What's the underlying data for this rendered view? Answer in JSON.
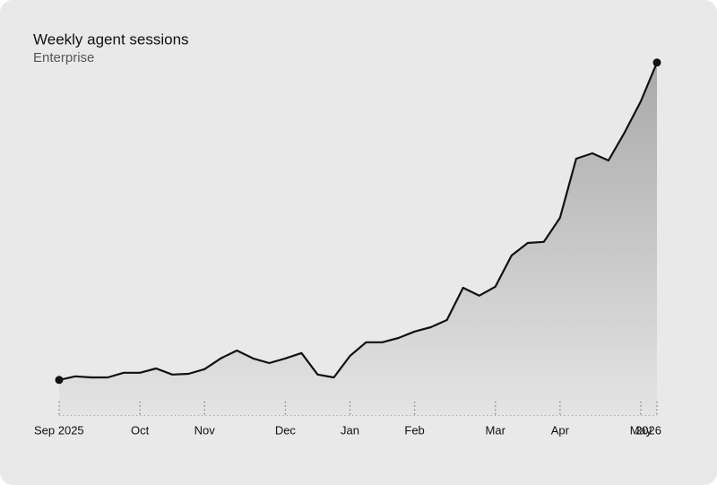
{
  "chart_data": {
    "type": "area",
    "title": "Weekly agent sessions",
    "subtitle": "Enterprise",
    "categories": [
      "Sep 2025",
      null,
      null,
      null,
      null,
      "Oct",
      null,
      null,
      null,
      "Nov",
      null,
      null,
      null,
      null,
      "Dec",
      null,
      null,
      null,
      "Jan",
      null,
      null,
      null,
      "Feb",
      null,
      null,
      null,
      null,
      "Mar",
      null,
      null,
      null,
      "Apr",
      null,
      null,
      null,
      null,
      "May",
      "2026"
    ],
    "values": [
      9.8,
      10.8,
      10.5,
      10.5,
      11.8,
      11.8,
      13,
      11.3,
      11.5,
      12.8,
      15.8,
      18,
      15.8,
      14.5,
      15.8,
      17.3,
      11.3,
      10.5,
      16.5,
      20.3,
      20.3,
      21.5,
      23.3,
      24.5,
      26.5,
      35.5,
      33.3,
      35.8,
      44.5,
      48,
      48.3,
      55,
      71.5,
      73,
      71,
      78.8,
      87.5,
      98.3
    ],
    "ylim": [
      0,
      100
    ],
    "color": "#111111"
  }
}
